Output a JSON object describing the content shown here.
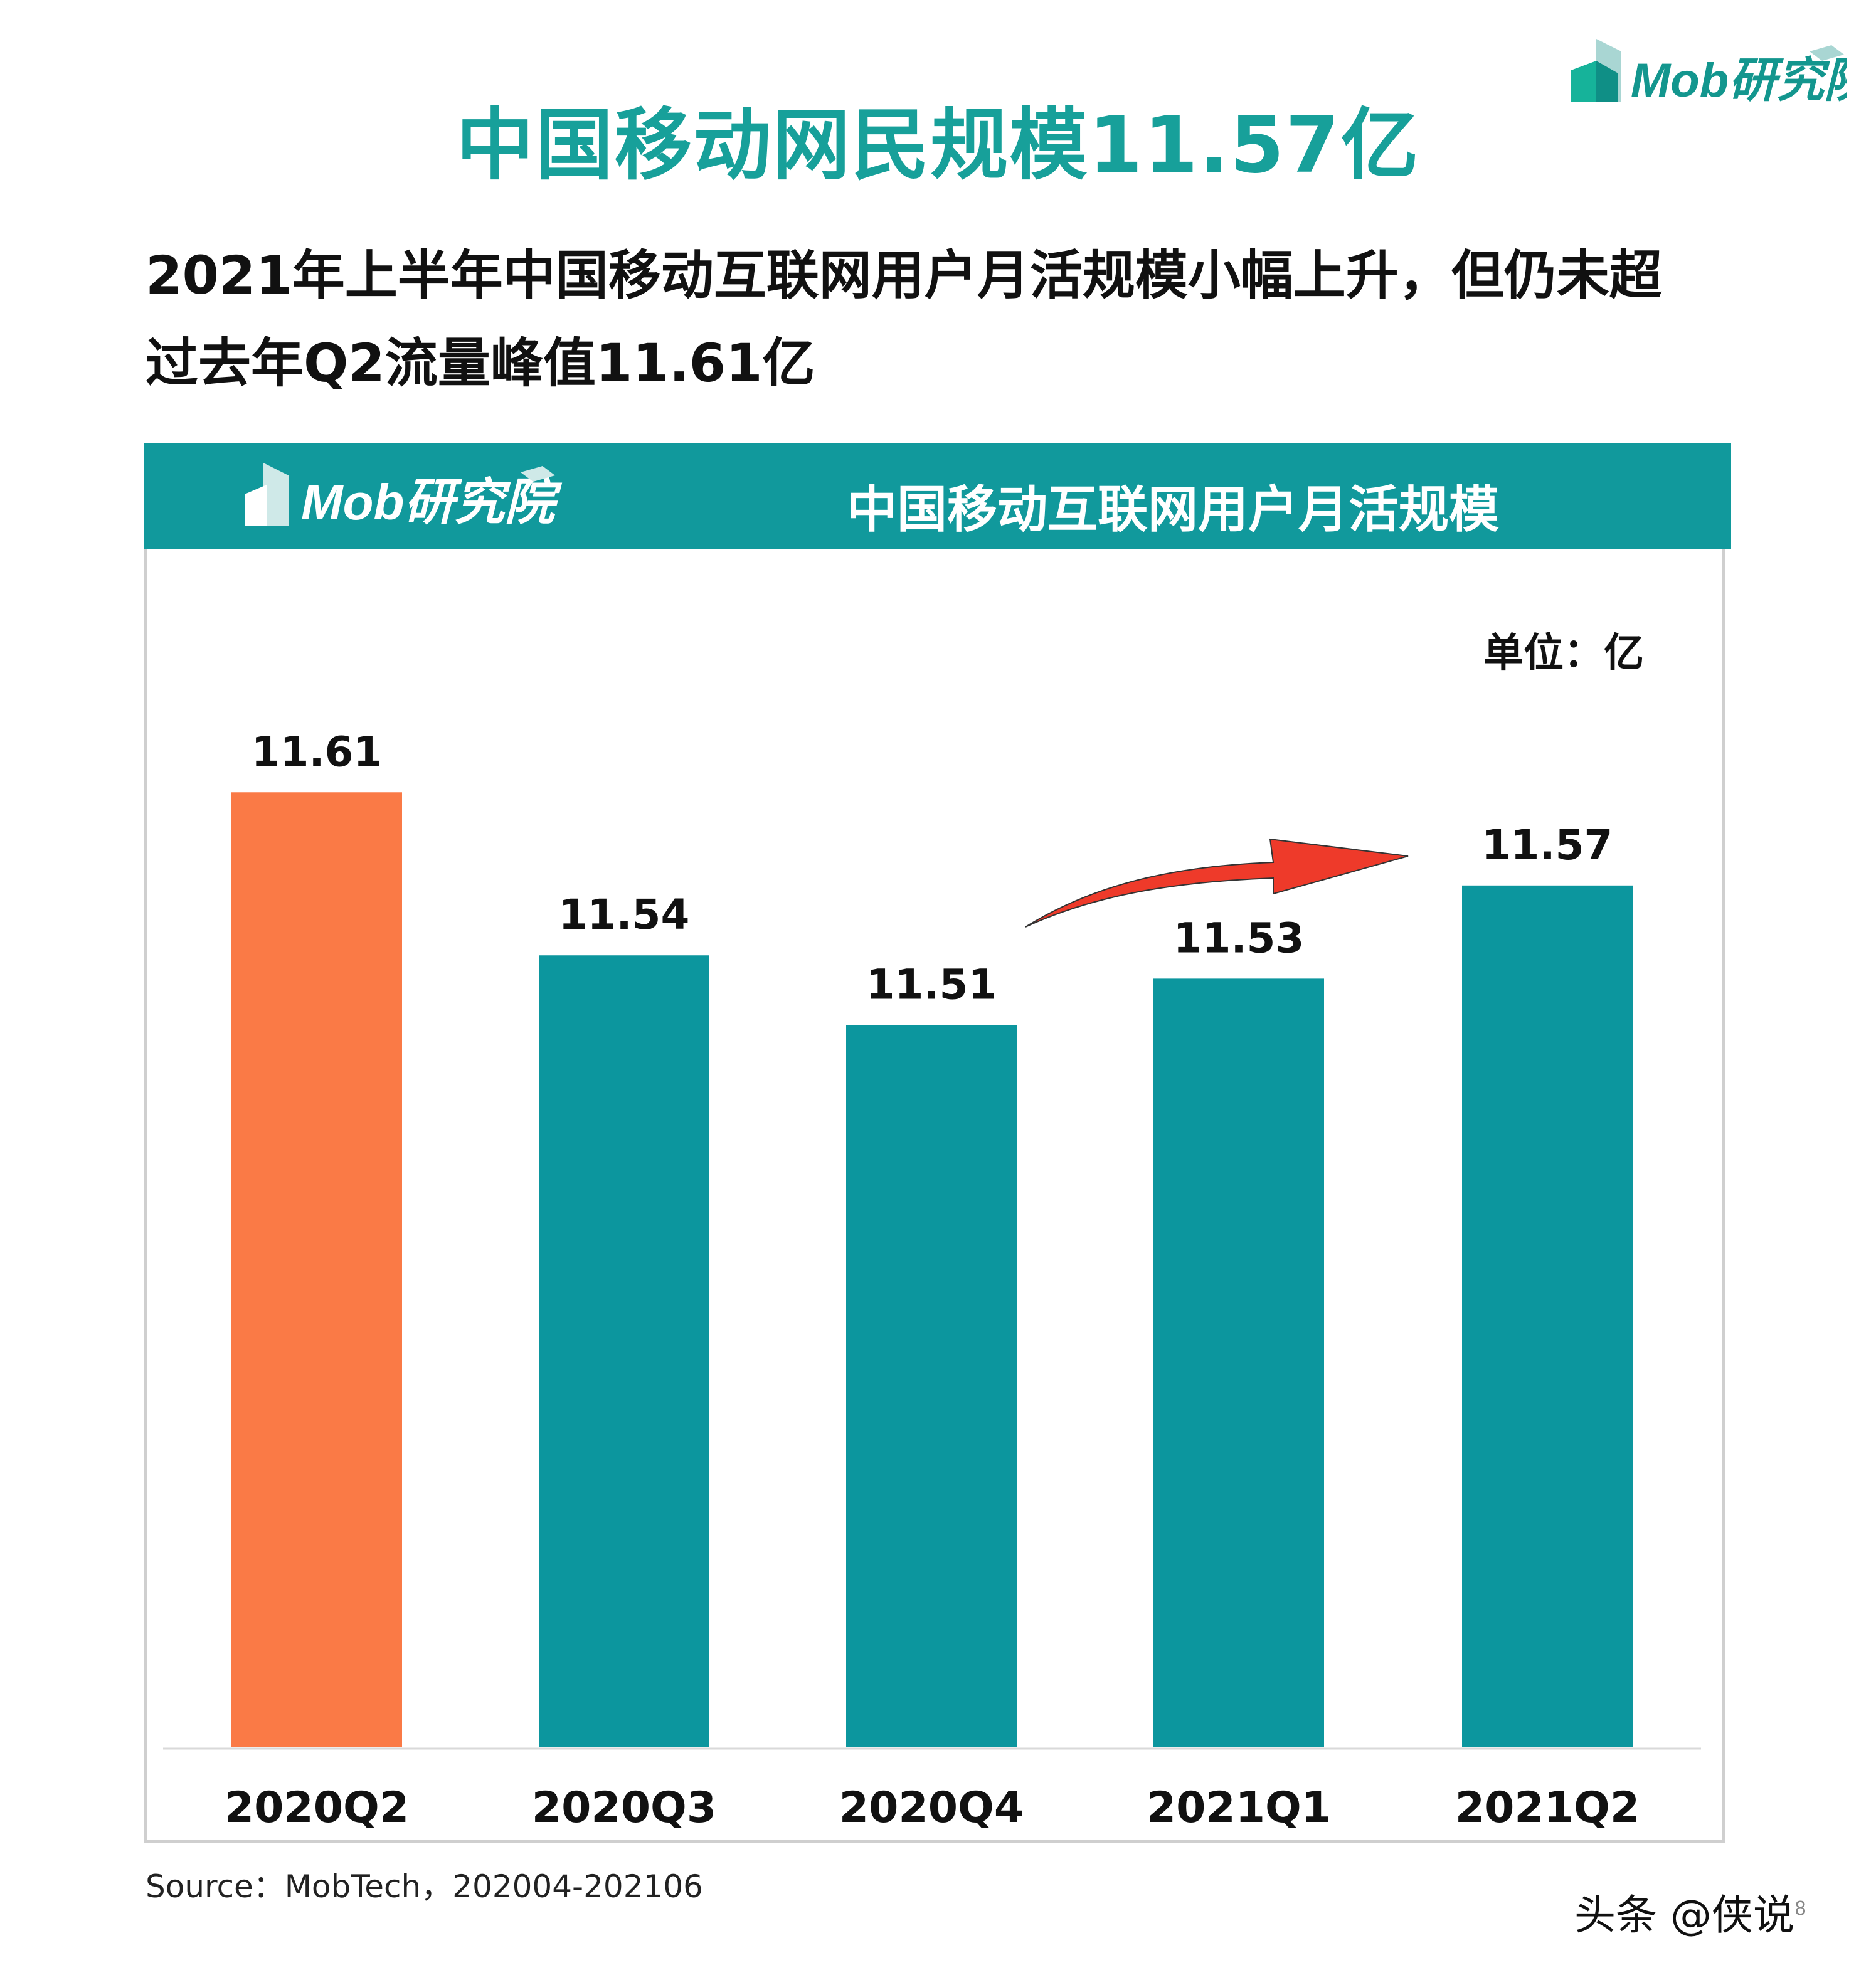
{
  "title": "中国移动网民规模11.57亿",
  "subtitle_lines": [
    "2021年上半年中国移动互联网用户月活规模小幅上升，但仍未超",
    "过去年Q2流量峰值11.61亿"
  ],
  "logo_text": "Mob研究院",
  "chart_header": "中国移动互联网用户月活规模",
  "unit": "单位：亿",
  "source": "Source：MobTech，202004-202106",
  "watermark": "头条 @侠说",
  "page_number": "8",
  "colors": {
    "teal": "#0C969E",
    "orange": "#FA7A46",
    "title": "#17A09A",
    "arrow": "#EE3A2A"
  },
  "chart_data": {
    "type": "bar",
    "title": "中国移动互联网用户月活规模",
    "categories": [
      "2020Q2",
      "2020Q3",
      "2020Q4",
      "2021Q1",
      "2021Q2"
    ],
    "values": [
      11.61,
      11.54,
      11.51,
      11.53,
      11.57
    ],
    "data_labels": [
      "11.61",
      "11.54",
      "11.51",
      "11.53",
      "11.57"
    ],
    "highlight_index": 0,
    "ylabel": "",
    "unit": "亿",
    "ylim": [
      11.2,
      11.65
    ],
    "grid": false,
    "legend": "none",
    "annotation": "upward red arrow from 2020Q4 to 2021Q2"
  }
}
